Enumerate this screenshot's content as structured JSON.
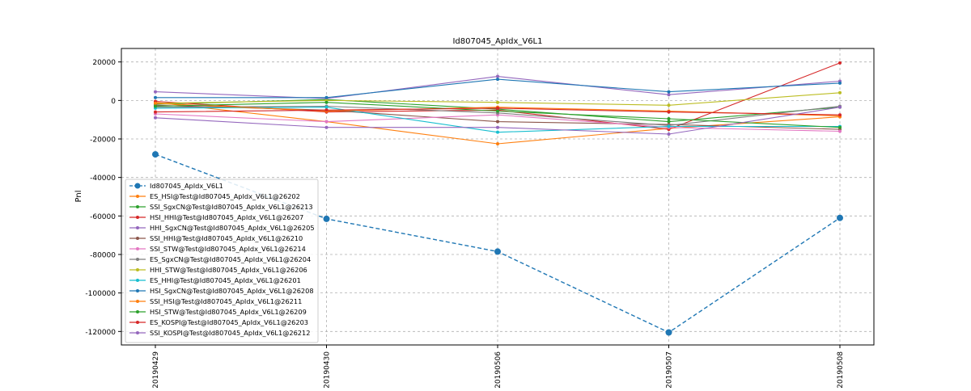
{
  "chart_data": {
    "type": "line",
    "title": "Id807045_ApIdx_V6L1",
    "xlabel": "",
    "ylabel": "Pnl",
    "categories": [
      "20190429",
      "20190430",
      "20190506",
      "20190507",
      "20190508"
    ],
    "ylim": [
      -127000,
      27000
    ],
    "yticks": [
      20000,
      0,
      -20000,
      -40000,
      -60000,
      -80000,
      -100000,
      -120000
    ],
    "grid": true,
    "legend_position": "lower-left",
    "series": [
      {
        "name": "Id807045_ApIdx_V6L1",
        "color": "#1f77b4",
        "style": "dashed",
        "marker": "big",
        "values": [
          -28000,
          -61500,
          -78500,
          -120500,
          -61000
        ]
      },
      {
        "name": "ES_HSI@Test@Id807045_ApIdx_V6L1@26202",
        "color": "#ff7f0e",
        "style": "solid",
        "values": [
          -1000,
          -11000,
          -22500,
          -14500,
          -8500
        ]
      },
      {
        "name": "SSI_SgxCN@Test@Id807045_ApIdx_V6L1@26213",
        "color": "#2ca02c",
        "style": "solid",
        "values": [
          -2000,
          500,
          -4500,
          -11000,
          -3500
        ]
      },
      {
        "name": "HSI_HHI@Test@Id807045_ApIdx_V6L1@26207",
        "color": "#d62728",
        "style": "solid",
        "values": [
          -500,
          -6000,
          -5000,
          -15000,
          19500
        ]
      },
      {
        "name": "HHI_SgxCN@Test@Id807045_ApIdx_V6L1@26205",
        "color": "#9467bd",
        "style": "solid",
        "values": [
          4500,
          1000,
          12500,
          3000,
          10000
        ]
      },
      {
        "name": "SSI_HHI@Test@Id807045_ApIdx_V6L1@26210",
        "color": "#8c564b",
        "style": "solid",
        "values": [
          -2500,
          -5000,
          -11000,
          -12500,
          -15000
        ]
      },
      {
        "name": "SSI_STW@Test@Id807045_ApIdx_V6L1@26214",
        "color": "#e377c2",
        "style": "solid",
        "values": [
          -7000,
          -11000,
          -7500,
          -14000,
          -16000
        ]
      },
      {
        "name": "ES_SgxCN@Test@Id807045_ApIdx_V6L1@26204",
        "color": "#7f7f7f",
        "style": "solid",
        "values": [
          -3500,
          -3000,
          -6500,
          -13000,
          -3000
        ]
      },
      {
        "name": "HHI_STW@Test@Id807045_ApIdx_V6L1@26206",
        "color": "#bcbd22",
        "style": "solid",
        "values": [
          -1500,
          0,
          -1000,
          -2500,
          4000
        ]
      },
      {
        "name": "ES_HHI@Test@Id807045_ApIdx_V6L1@26201",
        "color": "#17becf",
        "style": "solid",
        "values": [
          -4000,
          -3500,
          -16500,
          -13500,
          -13500
        ]
      },
      {
        "name": "HSI_SgxCN@Test@Id807045_ApIdx_V6L1@26208",
        "color": "#1f77b4",
        "style": "solid",
        "values": [
          1500,
          1500,
          11000,
          4500,
          9000
        ]
      },
      {
        "name": "SSI_HSI@Test@Id807045_ApIdx_V6L1@26211",
        "color": "#ff7f0e",
        "style": "solid",
        "values": [
          -1500,
          -5500,
          -3500,
          -5500,
          -8000
        ]
      },
      {
        "name": "HSI_STW@Test@Id807045_ApIdx_V6L1@26209",
        "color": "#2ca02c",
        "style": "solid",
        "values": [
          -3000,
          -1000,
          -5500,
          -9500,
          -14000
        ]
      },
      {
        "name": "ES_KOSPI@Test@Id807045_ApIdx_V6L1@26203",
        "color": "#d62728",
        "style": "solid",
        "values": [
          -6000,
          -5000,
          -4000,
          -6000,
          -7500
        ]
      },
      {
        "name": "SSI_KOSPI@Test@Id807045_ApIdx_V6L1@26212",
        "color": "#9467bd",
        "style": "solid",
        "values": [
          -9000,
          -14000,
          -14000,
          -17500,
          -3500
        ]
      }
    ]
  }
}
